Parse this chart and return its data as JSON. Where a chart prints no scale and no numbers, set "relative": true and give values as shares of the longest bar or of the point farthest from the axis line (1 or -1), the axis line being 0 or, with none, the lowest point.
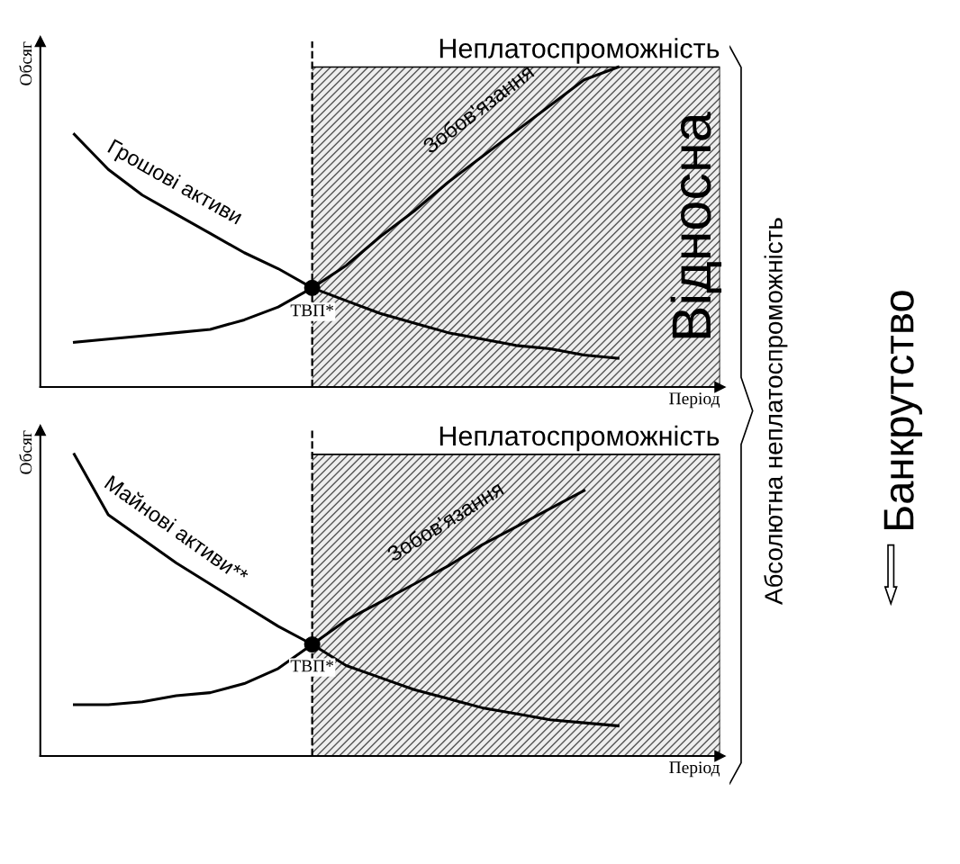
{
  "chart_data": [
    {
      "type": "line",
      "relative": true,
      "ylabel": "Обсяг",
      "xlabel": "Період",
      "categories": [
        null,
        null,
        null,
        null,
        null,
        null,
        null,
        null,
        null,
        null,
        null,
        null,
        null,
        null,
        null,
        null,
        null,
        null,
        null,
        null,
        null
      ],
      "tick_labels": false,
      "legend": false,
      "marker": "none",
      "line_style": "solid",
      "series": [
        {
          "name": "Грошові активи",
          "color": "#000000",
          "values": [
            null,
            0.79,
            0.68,
            0.6,
            0.54,
            0.48,
            0.42,
            0.37,
            0.31,
            0.27,
            0.23,
            0.2,
            0.17,
            0.15,
            0.13,
            0.12,
            0.1,
            0.09,
            null,
            null,
            null
          ]
        },
        {
          "name": "Зобов'язання",
          "color": "#000000",
          "values": [
            null,
            0.14,
            0.15,
            0.16,
            0.17,
            0.18,
            0.21,
            0.25,
            0.31,
            0.38,
            0.47,
            0.55,
            0.64,
            0.72,
            0.8,
            0.88,
            0.96,
            1.0,
            null,
            null,
            null
          ]
        }
      ],
      "annotations": [
        {
          "text": "ТВП*",
          "y": 0.31
        },
        "Неплатоспроможність",
        "Відносна"
      ]
    },
    {
      "type": "line",
      "relative": true,
      "ylabel": "Обсяг",
      "xlabel": "Період",
      "categories": [
        null,
        null,
        null,
        null,
        null,
        null,
        null,
        null,
        null,
        null,
        null,
        null,
        null,
        null,
        null,
        null,
        null,
        null,
        null,
        null,
        null
      ],
      "tick_labels": false,
      "legend": false,
      "marker": "none",
      "line_style": "solid",
      "series": [
        {
          "name": "Майнові активи**",
          "color": "#000000",
          "values": [
            null,
            1.0,
            0.8,
            0.72,
            0.64,
            0.57,
            0.5,
            0.43,
            0.37,
            0.3,
            0.26,
            0.22,
            0.19,
            0.16,
            0.14,
            0.12,
            0.11,
            0.1,
            null,
            null,
            null
          ]
        },
        {
          "name": "Зобов'язання",
          "color": "#000000",
          "values": [
            null,
            0.17,
            0.17,
            0.18,
            0.2,
            0.21,
            0.24,
            0.29,
            0.37,
            0.45,
            0.51,
            0.57,
            0.63,
            0.7,
            0.76,
            0.82,
            0.88,
            null,
            null,
            null,
            null
          ]
        }
      ],
      "annotations": [
        {
          "text": "ТВП*",
          "y": 0.37
        },
        "Неплатоспроможність"
      ]
    },
    {
      "type": "other",
      "annotations": [
        "Абсолютна неплатоспроможність",
        "Банкрутство"
      ]
    }
  ]
}
